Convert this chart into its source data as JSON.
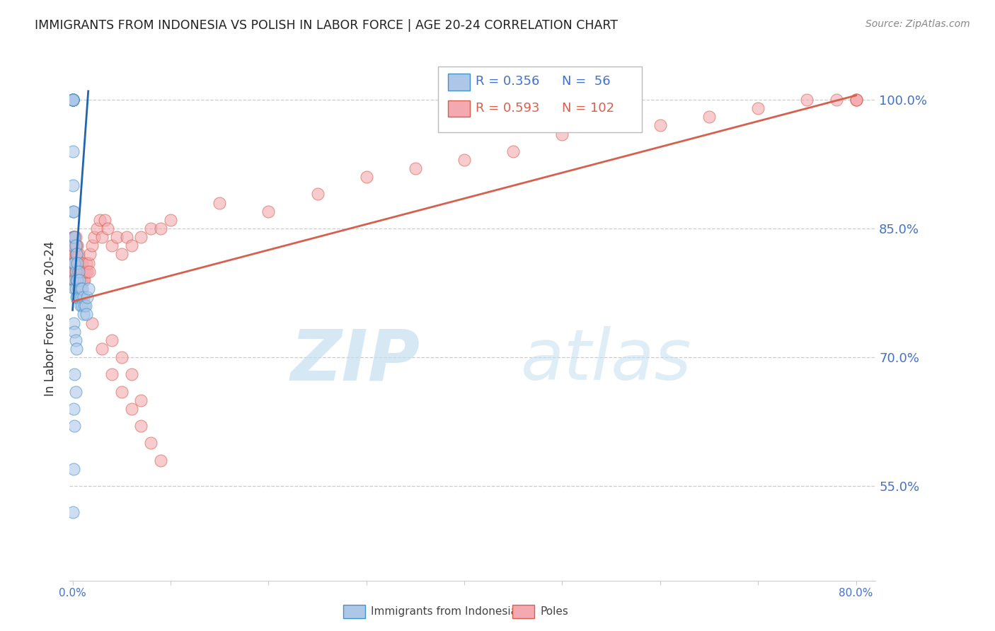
{
  "title": "IMMIGRANTS FROM INDONESIA VS POLISH IN LABOR FORCE | AGE 20-24 CORRELATION CHART",
  "source": "Source: ZipAtlas.com",
  "ylabel": "In Labor Force | Age 20-24",
  "ytick_labels": [
    "55.0%",
    "70.0%",
    "85.0%",
    "100.0%"
  ],
  "ytick_values": [
    0.55,
    0.7,
    0.85,
    1.0
  ],
  "xlim": [
    -0.003,
    0.82
  ],
  "ylim": [
    0.44,
    1.05
  ],
  "legend_blue_R": "0.356",
  "legend_blue_N": "56",
  "legend_pink_R": "0.593",
  "legend_pink_N": "102",
  "legend_label_blue": "Immigrants from Indonesia",
  "legend_label_pink": "Poles",
  "blue_color": "#aec7e8",
  "blue_edge_color": "#4393c3",
  "pink_color": "#f4a9b0",
  "pink_edge_color": "#d6604d",
  "blue_line_color": "#2166ac",
  "pink_line_color": "#d6604d",
  "blue_line_x0": 0.0,
  "blue_line_x1": 0.016,
  "blue_line_y0": 0.755,
  "blue_line_y1": 1.01,
  "pink_line_x0": 0.0,
  "pink_line_x1": 0.8,
  "pink_line_y0": 0.765,
  "pink_line_y1": 1.005,
  "blue_scatter_x": [
    0.0,
    0.0,
    0.0,
    0.0,
    0.0,
    0.0,
    0.0,
    0.0,
    0.0,
    0.0,
    0.0,
    0.0,
    0.0,
    0.0,
    0.001,
    0.001,
    0.001,
    0.002,
    0.002,
    0.002,
    0.002,
    0.003,
    0.003,
    0.003,
    0.004,
    0.004,
    0.004,
    0.005,
    0.005,
    0.005,
    0.006,
    0.006,
    0.007,
    0.007,
    0.008,
    0.008,
    0.009,
    0.01,
    0.01,
    0.011,
    0.011,
    0.012,
    0.013,
    0.014,
    0.015,
    0.016,
    0.001,
    0.002,
    0.003,
    0.004,
    0.002,
    0.003,
    0.001,
    0.002,
    0.001,
    0.0
  ],
  "blue_scatter_y": [
    1.0,
    1.0,
    1.0,
    1.0,
    1.0,
    1.0,
    1.0,
    1.0,
    1.0,
    1.0,
    0.94,
    0.9,
    0.87,
    0.83,
    0.87,
    0.84,
    0.81,
    0.84,
    0.81,
    0.79,
    0.78,
    0.83,
    0.8,
    0.78,
    0.82,
    0.79,
    0.77,
    0.81,
    0.79,
    0.77,
    0.8,
    0.78,
    0.79,
    0.77,
    0.78,
    0.76,
    0.77,
    0.78,
    0.76,
    0.77,
    0.75,
    0.76,
    0.76,
    0.75,
    0.77,
    0.78,
    0.74,
    0.73,
    0.72,
    0.71,
    0.68,
    0.66,
    0.64,
    0.62,
    0.57,
    0.52
  ],
  "pink_scatter_x": [
    0.0,
    0.0,
    0.0,
    0.0,
    0.001,
    0.001,
    0.001,
    0.001,
    0.001,
    0.001,
    0.002,
    0.002,
    0.002,
    0.002,
    0.002,
    0.002,
    0.003,
    0.003,
    0.003,
    0.003,
    0.003,
    0.003,
    0.004,
    0.004,
    0.004,
    0.004,
    0.004,
    0.005,
    0.005,
    0.005,
    0.005,
    0.005,
    0.006,
    0.006,
    0.006,
    0.006,
    0.007,
    0.007,
    0.007,
    0.008,
    0.008,
    0.008,
    0.009,
    0.009,
    0.01,
    0.01,
    0.01,
    0.011,
    0.011,
    0.012,
    0.012,
    0.013,
    0.014,
    0.015,
    0.016,
    0.017,
    0.018,
    0.02,
    0.022,
    0.025,
    0.028,
    0.03,
    0.033,
    0.036,
    0.04,
    0.045,
    0.05,
    0.055,
    0.06,
    0.07,
    0.08,
    0.09,
    0.1,
    0.15,
    0.2,
    0.25,
    0.3,
    0.35,
    0.4,
    0.45,
    0.5,
    0.55,
    0.6,
    0.65,
    0.7,
    0.75,
    0.78,
    0.8,
    0.8,
    0.8,
    0.04,
    0.05,
    0.06,
    0.07,
    0.08,
    0.09,
    0.02,
    0.03,
    0.04,
    0.05,
    0.06,
    0.07
  ],
  "pink_scatter_y": [
    0.83,
    0.81,
    0.84,
    0.82,
    0.82,
    0.81,
    0.83,
    0.8,
    0.84,
    0.79,
    0.82,
    0.81,
    0.8,
    0.83,
    0.84,
    0.79,
    0.82,
    0.81,
    0.8,
    0.83,
    0.84,
    0.79,
    0.82,
    0.81,
    0.8,
    0.83,
    0.78,
    0.82,
    0.81,
    0.8,
    0.83,
    0.79,
    0.81,
    0.8,
    0.82,
    0.79,
    0.81,
    0.8,
    0.79,
    0.8,
    0.81,
    0.79,
    0.8,
    0.79,
    0.8,
    0.81,
    0.79,
    0.8,
    0.79,
    0.8,
    0.79,
    0.8,
    0.81,
    0.8,
    0.81,
    0.8,
    0.82,
    0.83,
    0.84,
    0.85,
    0.86,
    0.84,
    0.86,
    0.85,
    0.83,
    0.84,
    0.82,
    0.84,
    0.83,
    0.84,
    0.85,
    0.85,
    0.86,
    0.88,
    0.87,
    0.89,
    0.91,
    0.92,
    0.93,
    0.94,
    0.96,
    0.97,
    0.97,
    0.98,
    0.99,
    1.0,
    1.0,
    1.0,
    1.0,
    1.0,
    0.68,
    0.66,
    0.64,
    0.62,
    0.6,
    0.58,
    0.74,
    0.71,
    0.72,
    0.7,
    0.68,
    0.65
  ]
}
